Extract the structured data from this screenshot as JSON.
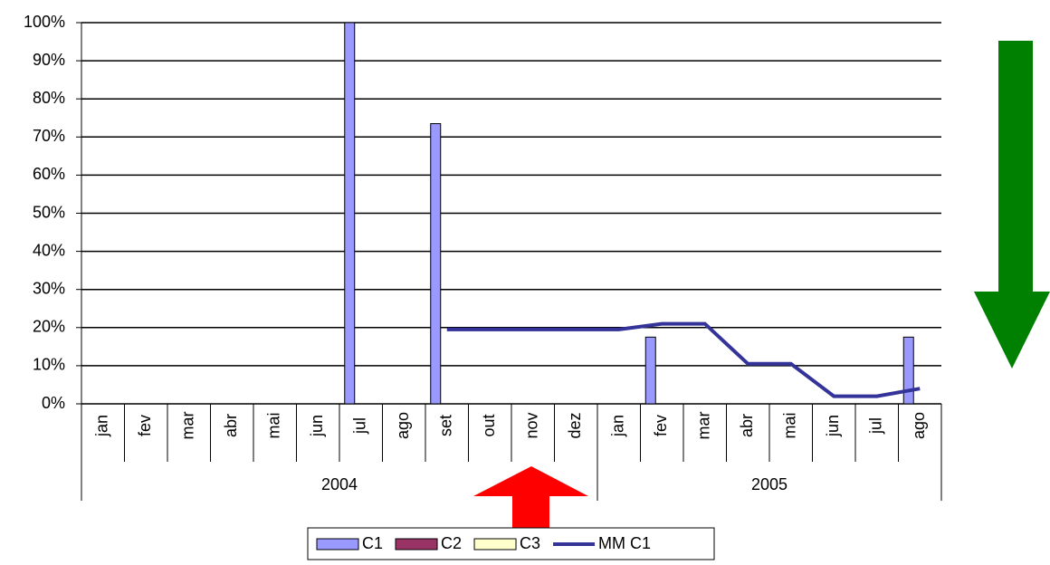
{
  "chart_data": {
    "type": "bar",
    "categories": [
      "jan",
      "fev",
      "mar",
      "abr",
      "mai",
      "jun",
      "jul",
      "ago",
      "set",
      "out",
      "nov",
      "dez",
      "jan",
      "fev",
      "mar",
      "abr",
      "mai",
      "jun",
      "jul",
      "ago"
    ],
    "category_groups": [
      "2004",
      "2005"
    ],
    "series": [
      {
        "name": "C1",
        "type": "bar",
        "color": "#9999ff",
        "values": [
          null,
          null,
          null,
          null,
          null,
          null,
          100,
          null,
          73.5,
          null,
          null,
          null,
          null,
          17.5,
          null,
          null,
          null,
          null,
          null,
          17.5
        ]
      },
      {
        "name": "C2",
        "type": "bar",
        "color": "#993366",
        "values": [
          null,
          null,
          null,
          null,
          null,
          null,
          null,
          null,
          null,
          null,
          null,
          null,
          null,
          null,
          null,
          null,
          null,
          null,
          null,
          null
        ]
      },
      {
        "name": "C3",
        "type": "bar",
        "color": "#ffffcc",
        "values": [
          null,
          null,
          null,
          null,
          null,
          null,
          null,
          null,
          null,
          null,
          null,
          null,
          null,
          null,
          null,
          null,
          null,
          null,
          null,
          null
        ]
      },
      {
        "name": "MM C1",
        "type": "line",
        "color": "#333399",
        "values": [
          null,
          null,
          null,
          null,
          null,
          null,
          null,
          null,
          19.5,
          19.5,
          19.5,
          19.5,
          19.5,
          21,
          21,
          10.5,
          10.5,
          2,
          2,
          4
        ]
      }
    ],
    "ylim": [
      0,
      100
    ],
    "yticks": [
      {
        "value": 0,
        "label": "0%"
      },
      {
        "value": 10,
        "label": "10%"
      },
      {
        "value": 20,
        "label": "20%"
      },
      {
        "value": 30,
        "label": "30%"
      },
      {
        "value": 40,
        "label": "40%"
      },
      {
        "value": 50,
        "label": "50%"
      },
      {
        "value": 60,
        "label": "60%"
      },
      {
        "value": 70,
        "label": "70%"
      },
      {
        "value": 80,
        "label": "80%"
      },
      {
        "value": 90,
        "label": "90%"
      },
      {
        "value": 100,
        "label": "100%"
      }
    ],
    "grid": true,
    "legend": "bottom"
  }
}
